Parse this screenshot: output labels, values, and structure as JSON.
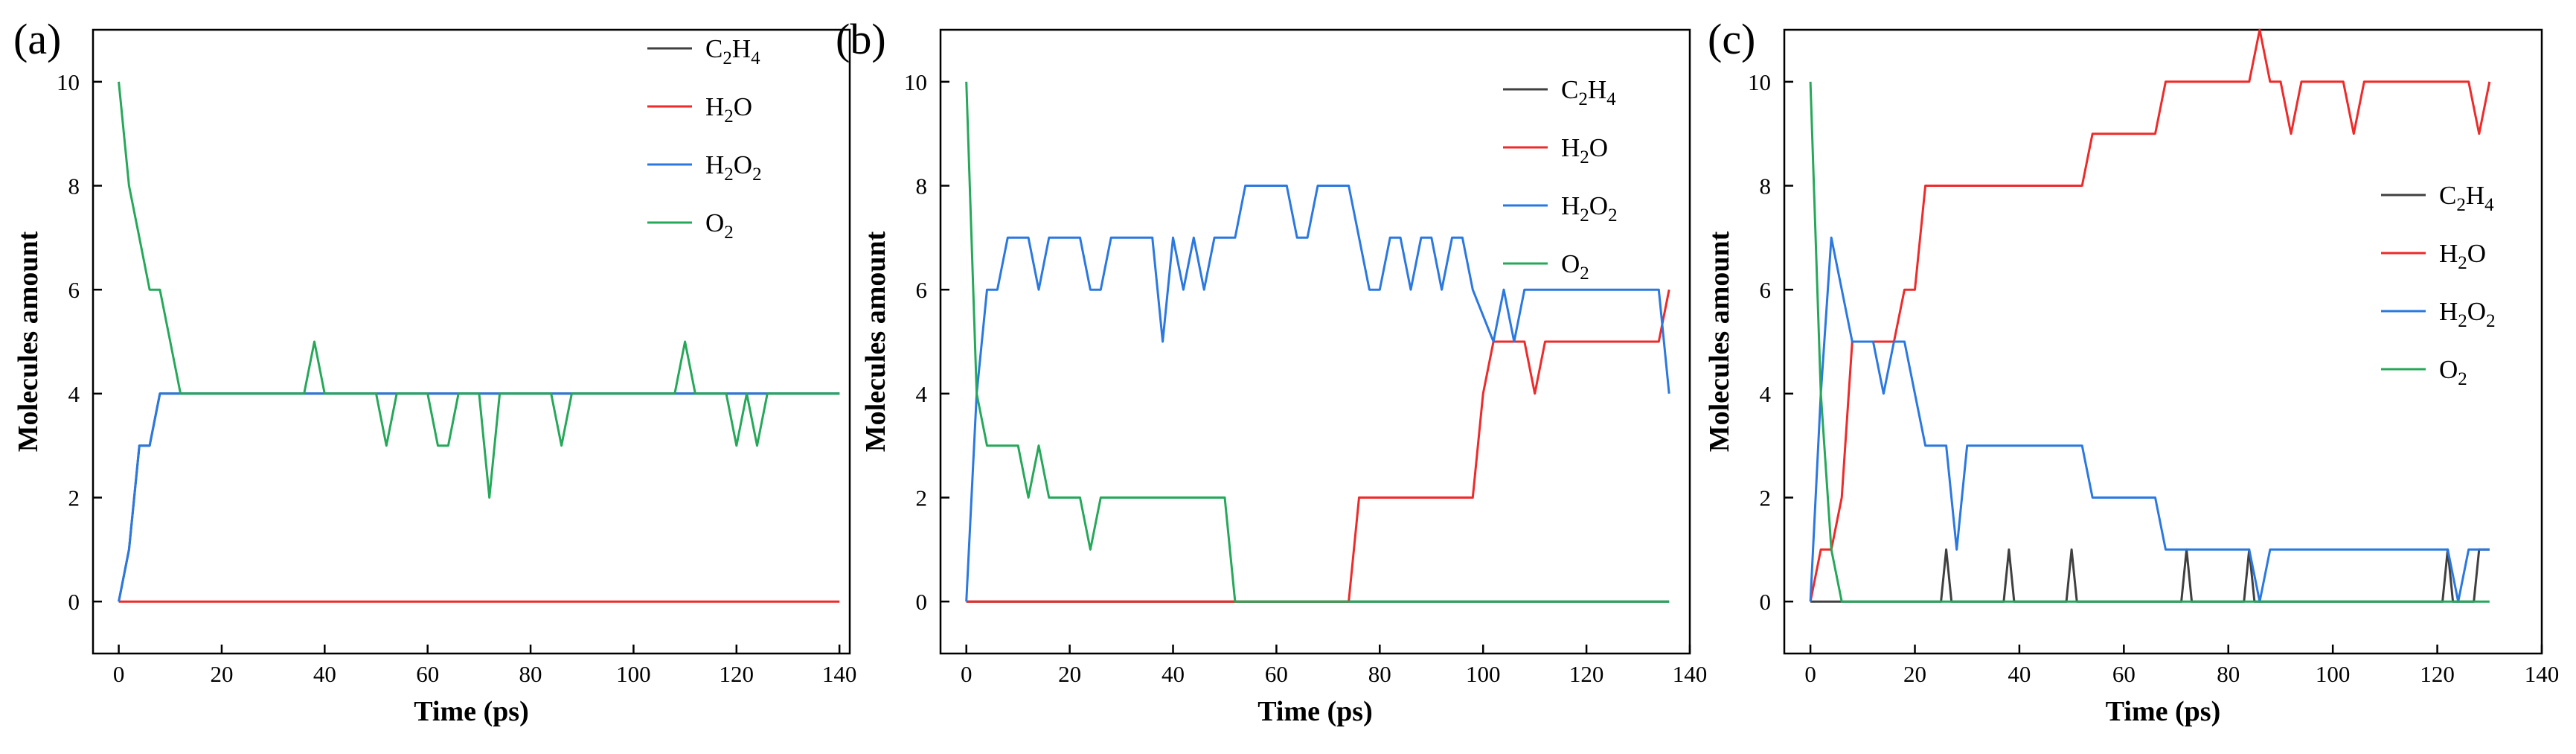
{
  "colors": {
    "C2H4": "#404040",
    "H2O": "#ee2a2a",
    "H2O2": "#2a78e0",
    "O2": "#26a85a"
  },
  "chart_data": [
    {
      "type": "line",
      "panel_label": "(a)",
      "xlabel": "Time (ps)",
      "ylabel": "Molecules amount",
      "xlim": [
        -5,
        142
      ],
      "ylim": [
        -1,
        11
      ],
      "xticks": [
        0,
        20,
        40,
        60,
        80,
        100,
        120,
        140
      ],
      "yticks": [
        0,
        2,
        4,
        6,
        8,
        10
      ],
      "legend": {
        "position": "top-right",
        "items": [
          {
            "key": "C2H4",
            "label": "C",
            "sub1": "2",
            "mid": "H",
            "sub2": "4",
            "tail": ""
          },
          {
            "key": "H2O",
            "label": "H",
            "sub1": "2",
            "mid": "O",
            "sub2": "",
            "tail": ""
          },
          {
            "key": "H2O2",
            "label": "H",
            "sub1": "2",
            "mid": "O",
            "sub2": "2",
            "tail": ""
          },
          {
            "key": "O2",
            "label": "O",
            "sub1": "2",
            "mid": "",
            "sub2": "",
            "tail": ""
          }
        ]
      },
      "series": [
        {
          "name": "C2H4",
          "x": [
            0,
            2,
            4,
            6,
            8,
            10,
            12,
            140
          ],
          "y": [
            0,
            1,
            3,
            3,
            4,
            4,
            4,
            4
          ]
        },
        {
          "name": "H2O",
          "x": [
            0,
            140
          ],
          "y": [
            0,
            0
          ]
        },
        {
          "name": "H2O2",
          "x": [
            0,
            2,
            4,
            6,
            8,
            10,
            12,
            140
          ],
          "y": [
            0,
            1,
            3,
            3,
            4,
            4,
            4,
            4
          ]
        },
        {
          "name": "O2",
          "x": [
            0,
            2,
            4,
            6,
            8,
            10,
            12,
            36,
            38,
            40,
            50,
            52,
            54,
            60,
            62,
            64,
            66,
            70,
            72,
            74,
            84,
            86,
            88,
            108,
            110,
            112,
            118,
            120,
            122,
            124,
            126,
            140
          ],
          "y": [
            10,
            8,
            7,
            6,
            6,
            5,
            4,
            4,
            5,
            4,
            4,
            3,
            4,
            4,
            3,
            3,
            4,
            4,
            2,
            4,
            4,
            3,
            4,
            4,
            5,
            4,
            4,
            3,
            4,
            3,
            4,
            4
          ]
        }
      ]
    },
    {
      "type": "line",
      "panel_label": "(b)",
      "xlabel": "Time (ps)",
      "ylabel": "Molecules amount",
      "xlim": [
        -5,
        140
      ],
      "ylim": [
        -1,
        11
      ],
      "xticks": [
        0,
        20,
        40,
        60,
        80,
        100,
        120,
        140
      ],
      "yticks": [
        0,
        2,
        4,
        6,
        8,
        10
      ],
      "legend": {
        "position": "top-right",
        "items": [
          {
            "key": "C2H4",
            "label": "C",
            "sub1": "2",
            "mid": "H",
            "sub2": "4",
            "tail": ""
          },
          {
            "key": "H2O",
            "label": "H",
            "sub1": "2",
            "mid": "O",
            "sub2": "",
            "tail": ""
          },
          {
            "key": "H2O2",
            "label": "H",
            "sub1": "2",
            "mid": "O",
            "sub2": "2",
            "tail": ""
          },
          {
            "key": "O2",
            "label": "O",
            "sub1": "2",
            "mid": "",
            "sub2": "",
            "tail": ""
          }
        ]
      },
      "series": [
        {
          "name": "C2H4",
          "x": [
            0,
            136
          ],
          "y": [
            0,
            0
          ]
        },
        {
          "name": "H2O",
          "x": [
            0,
            74,
            76,
            98,
            100,
            102,
            108,
            110,
            112,
            134,
            136
          ],
          "y": [
            0,
            0,
            2,
            2,
            4,
            5,
            5,
            4,
            5,
            5,
            6
          ]
        },
        {
          "name": "H2O2",
          "x": [
            0,
            2,
            4,
            6,
            8,
            10,
            12,
            14,
            16,
            22,
            24,
            26,
            28,
            36,
            38,
            40,
            42,
            44,
            46,
            48,
            52,
            54,
            56,
            62,
            64,
            66,
            68,
            74,
            76,
            78,
            80,
            82,
            84,
            86,
            88,
            90,
            92,
            94,
            96,
            98,
            102,
            104,
            106,
            108,
            134,
            136
          ],
          "y": [
            0,
            4,
            6,
            6,
            7,
            7,
            7,
            6,
            7,
            7,
            6,
            6,
            7,
            7,
            5,
            7,
            6,
            7,
            6,
            7,
            7,
            8,
            8,
            8,
            7,
            7,
            8,
            8,
            7,
            6,
            6,
            7,
            7,
            6,
            7,
            7,
            6,
            7,
            7,
            6,
            5,
            6,
            5,
            6,
            6,
            4
          ]
        },
        {
          "name": "O2",
          "x": [
            0,
            2,
            4,
            10,
            12,
            14,
            16,
            20,
            22,
            24,
            26,
            50,
            52,
            136
          ],
          "y": [
            10,
            4,
            3,
            3,
            2,
            3,
            2,
            2,
            2,
            1,
            2,
            2,
            0,
            0
          ]
        }
      ]
    },
    {
      "type": "line",
      "panel_label": "(c)",
      "xlabel": "Time (ps)",
      "ylabel": "Molecules amount",
      "xlim": [
        -5,
        140
      ],
      "ylim": [
        -1,
        11
      ],
      "xticks": [
        0,
        20,
        40,
        60,
        80,
        100,
        120,
        140
      ],
      "yticks": [
        0,
        2,
        4,
        6,
        8,
        10
      ],
      "legend": {
        "position": "right",
        "items": [
          {
            "key": "C2H4",
            "label": "C",
            "sub1": "2",
            "mid": "H",
            "sub2": "4",
            "tail": ""
          },
          {
            "key": "H2O",
            "label": "H",
            "sub1": "2",
            "mid": "O",
            "sub2": "",
            "tail": ""
          },
          {
            "key": "H2O2",
            "label": "H",
            "sub1": "2",
            "mid": "O",
            "sub2": "2",
            "tail": ""
          },
          {
            "key": "O2",
            "label": "O",
            "sub1": "2",
            "mid": "",
            "sub2": "",
            "tail": ""
          }
        ]
      },
      "series": [
        {
          "name": "C2H4",
          "x": [
            0,
            25,
            26,
            27,
            37,
            38,
            39,
            49,
            50,
            51,
            71,
            72,
            73,
            83,
            84,
            85,
            121,
            122,
            123,
            127,
            128,
            130
          ],
          "y": [
            0,
            0,
            1,
            0,
            0,
            1,
            0,
            0,
            1,
            0,
            0,
            1,
            0,
            0,
            1,
            0,
            0,
            1,
            0,
            0,
            1,
            1
          ]
        },
        {
          "name": "H2O",
          "x": [
            0,
            2,
            4,
            6,
            8,
            10,
            16,
            18,
            20,
            22,
            52,
            54,
            66,
            68,
            70,
            84,
            86,
            88,
            90,
            92,
            94,
            102,
            104,
            106,
            126,
            128,
            130
          ],
          "y": [
            0,
            1,
            1,
            2,
            5,
            5,
            5,
            6,
            6,
            8,
            8,
            9,
            9,
            10,
            10,
            10,
            11,
            10,
            10,
            9,
            10,
            10,
            9,
            10,
            10,
            9,
            10
          ]
        },
        {
          "name": "H2O2",
          "x": [
            0,
            2,
            4,
            8,
            12,
            14,
            16,
            18,
            20,
            22,
            26,
            28,
            30,
            50,
            52,
            54,
            66,
            68,
            70,
            84,
            86,
            88,
            122,
            124,
            126,
            130
          ],
          "y": [
            0,
            4,
            7,
            5,
            5,
            4,
            5,
            5,
            4,
            3,
            3,
            1,
            3,
            3,
            3,
            2,
            2,
            1,
            1,
            1,
            0,
            1,
            1,
            0,
            1,
            1
          ]
        },
        {
          "name": "O2",
          "x": [
            0,
            2,
            4,
            6,
            130
          ],
          "y": [
            10,
            4,
            1,
            0,
            0
          ]
        }
      ]
    }
  ]
}
